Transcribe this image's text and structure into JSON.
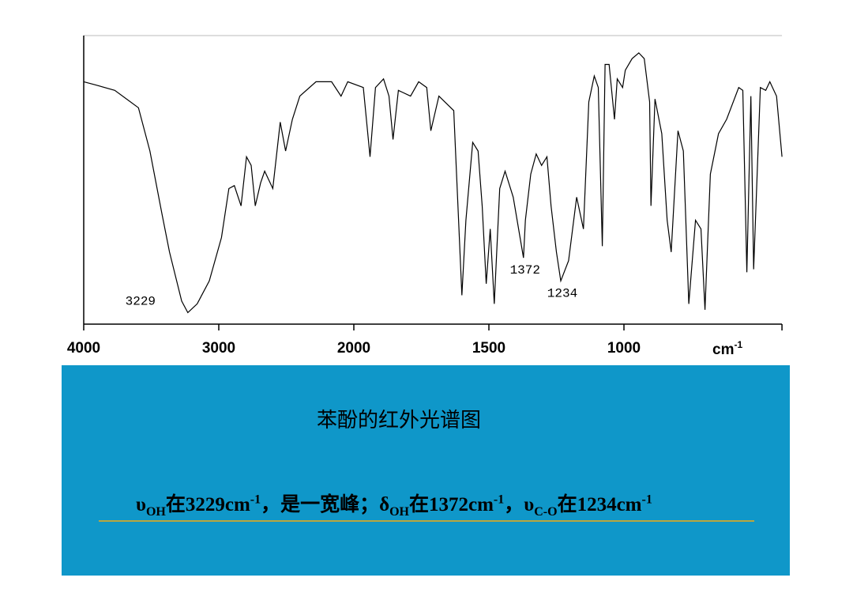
{
  "chart_data": {
    "type": "line",
    "title": "苯酚的红外光谱图",
    "x_label": {
      "base": "cm",
      "sup": "-1"
    },
    "xlim": [
      4000,
      415
    ],
    "xticks": [
      4000,
      3000,
      2000,
      1500,
      1000
    ],
    "ylim": [
      0,
      100
    ],
    "color": "#000000",
    "x": [
      4000,
      3920,
      3770,
      3595,
      3510,
      3420,
      3365,
      3275,
      3229,
      3160,
      3070,
      2980,
      2925,
      2885,
      2835,
      2795,
      2760,
      2730,
      2690,
      2660,
      2600,
      2545,
      2505,
      2455,
      2400,
      2280,
      2165,
      2095,
      2045,
      1965,
      1940,
      1920,
      1890,
      1870,
      1855,
      1835,
      1790,
      1760,
      1730,
      1715,
      1685,
      1630,
      1600,
      1585,
      1560,
      1540,
      1525,
      1510,
      1495,
      1480,
      1460,
      1440,
      1410,
      1372,
      1365,
      1345,
      1325,
      1305,
      1285,
      1270,
      1250,
      1234,
      1205,
      1175,
      1150,
      1130,
      1110,
      1095,
      1080,
      1070,
      1055,
      1035,
      1025,
      1005,
      995,
      970,
      945,
      925,
      905,
      900,
      885,
      860,
      840,
      825,
      800,
      780,
      760,
      735,
      715,
      700,
      680,
      650,
      620,
      575,
      560,
      545,
      530,
      520,
      495,
      475,
      460,
      435,
      415
    ],
    "values": [
      84,
      83,
      81,
      75,
      60,
      38,
      25,
      8,
      4,
      7,
      15,
      30,
      47,
      48,
      41,
      58,
      55,
      41,
      49,
      53,
      47,
      70,
      60,
      71,
      79,
      84,
      84,
      79,
      84,
      82,
      58,
      82,
      85,
      79,
      64,
      81,
      79,
      84,
      82,
      67,
      79,
      74,
      10,
      36,
      63,
      60,
      41,
      14,
      33,
      7,
      47,
      53,
      44,
      23,
      36,
      52,
      59,
      55,
      58,
      41,
      25,
      15,
      22,
      44,
      33,
      77,
      86,
      82,
      27,
      90,
      90,
      71,
      85,
      82,
      88,
      92,
      94,
      92,
      77,
      41,
      78,
      66,
      36,
      25,
      67,
      60,
      7,
      36,
      33,
      5,
      52,
      66,
      71,
      82,
      81,
      18,
      79,
      19,
      82,
      81,
      84,
      79,
      58
    ],
    "annotations": [
      {
        "label": "3229",
        "x": 3229
      },
      {
        "label": "1372",
        "x": 1372
      },
      {
        "label": "1234",
        "x": 1234
      }
    ],
    "description": [
      "υ",
      "OH",
      "在3229cm",
      "-1",
      "，是一宽峰；δ",
      "OH",
      "在1372cm",
      "-1",
      "，υ",
      "C-O",
      "在1234cm",
      "-1"
    ]
  }
}
